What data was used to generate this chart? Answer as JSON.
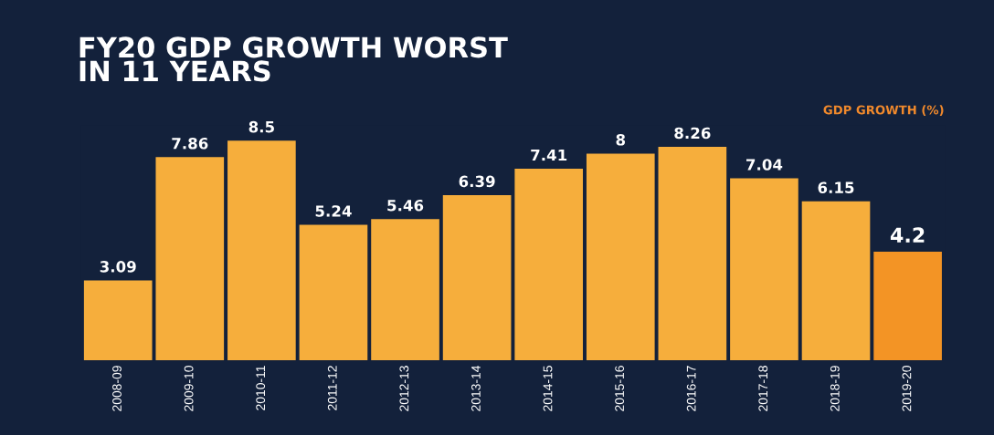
{
  "chart_data": {
    "type": "bar",
    "title": "FY20 GDP GROWTH WORST\nIN 11 YEARS",
    "categories": [
      "2008-09",
      "2009-10",
      "2010-11",
      "2011-12",
      "2012-13",
      "2013-14",
      "2014-15",
      "2015-16",
      "2016-17",
      "2017-18",
      "2018-19",
      "2019-20"
    ],
    "values": [
      3.09,
      7.86,
      8.5,
      5.24,
      5.46,
      6.39,
      7.41,
      8,
      8.26,
      7.04,
      6.15,
      4.2
    ],
    "colors": [
      "#f6ae3c",
      "#f6ae3c",
      "#f6ae3c",
      "#f6ae3c",
      "#f6ae3c",
      "#f6ae3c",
      "#f6ae3c",
      "#f6ae3c",
      "#f6ae3c",
      "#f6ae3c",
      "#f6ae3c",
      "#f39425"
    ],
    "annotations": [
      "GDP GROWTH (%)"
    ],
    "data_labels": true,
    "grid": false,
    "legend": false
  }
}
